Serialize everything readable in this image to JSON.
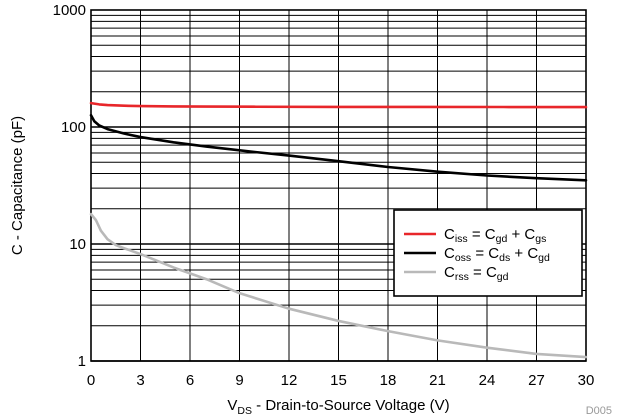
{
  "chart_data": {
    "type": "line",
    "xlabel": {
      "main": "V",
      "sub": "DS",
      "rest": " - Drain-to-Source Voltage (V)"
    },
    "ylabel": "C - Capacitance (pF)",
    "xlim": [
      0,
      30
    ],
    "ylim": [
      1,
      1000
    ],
    "yscale": "log",
    "grid": true,
    "legend_placement": "right, lower-middle",
    "x_ticks": [
      "0",
      "3",
      "6",
      "9",
      "12",
      "15",
      "18",
      "21",
      "24",
      "27",
      "30"
    ],
    "y_ticks": [
      "1",
      "10",
      "100",
      "1000"
    ],
    "footnote": "D005",
    "series": [
      {
        "key": "ciss",
        "legend": [
          [
            "C",
            "n"
          ],
          [
            "iss",
            "s"
          ],
          [
            " = C",
            "n"
          ],
          [
            "gd",
            "s"
          ],
          [
            " + C",
            "n"
          ],
          [
            "gs",
            "s"
          ]
        ],
        "color": "#e8262a",
        "x": [
          0,
          0.5,
          1,
          2,
          3,
          5,
          7,
          10,
          15,
          20,
          25,
          30
        ],
        "y": [
          160,
          156,
          154,
          152,
          151,
          150,
          149.5,
          149,
          148.5,
          148.3,
          148.2,
          148
        ]
      },
      {
        "key": "coss",
        "legend": [
          [
            "C",
            "n"
          ],
          [
            "oss",
            "s"
          ],
          [
            " = C",
            "n"
          ],
          [
            "ds",
            "s"
          ],
          [
            " + C",
            "n"
          ],
          [
            "gd",
            "s"
          ]
        ],
        "color": "#000000",
        "x": [
          0,
          0.2,
          0.5,
          1,
          2,
          3,
          5,
          7,
          10,
          12,
          15,
          18,
          21,
          24,
          27,
          30
        ],
        "y": [
          126,
          112,
          103,
          96,
          88,
          82,
          74,
          68,
          61,
          57,
          51,
          45.5,
          41.5,
          38.5,
          36.5,
          35
        ]
      },
      {
        "key": "crss",
        "legend": [
          [
            "C",
            "n"
          ],
          [
            "rss",
            "s"
          ],
          [
            " = C",
            "n"
          ],
          [
            "gd",
            "s"
          ]
        ],
        "color": "#b9b9b9",
        "x": [
          0,
          0.3,
          0.6,
          1,
          1.5,
          2,
          3,
          5,
          7,
          9,
          12,
          15,
          18,
          21,
          24,
          27,
          30
        ],
        "y": [
          18,
          16,
          13,
          11,
          9.8,
          9.2,
          8.2,
          6.3,
          5,
          3.8,
          2.8,
          2.2,
          1.8,
          1.5,
          1.3,
          1.15,
          1.08
        ]
      }
    ]
  }
}
